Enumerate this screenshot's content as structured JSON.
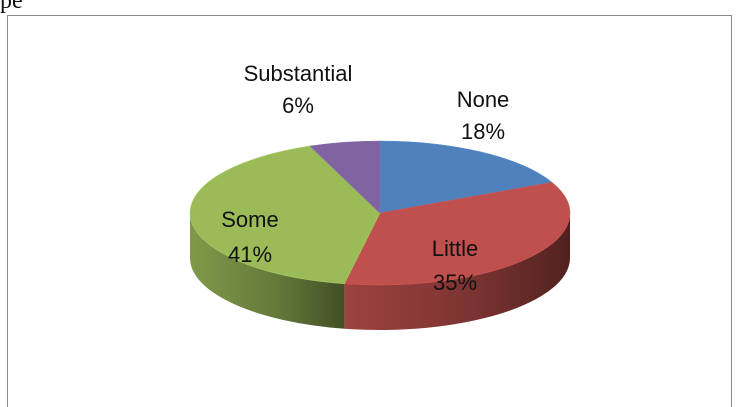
{
  "page": {
    "top_text": "pe"
  },
  "chart_data": {
    "type": "pie",
    "style": "3d",
    "title": "",
    "categories": [
      "None",
      "Little",
      "Some",
      "Substantial"
    ],
    "values": [
      18,
      35,
      41,
      6
    ],
    "labels": [
      "None\n18%",
      "Little\n35%",
      "Some\n41%",
      "Substantial\n6%"
    ],
    "series": [
      {
        "name": "",
        "values": [
          18,
          35,
          41,
          6
        ]
      }
    ],
    "colors": [
      "#4f81bd",
      "#c0504d",
      "#9bbb59",
      "#8064a2"
    ],
    "legend": "none"
  }
}
